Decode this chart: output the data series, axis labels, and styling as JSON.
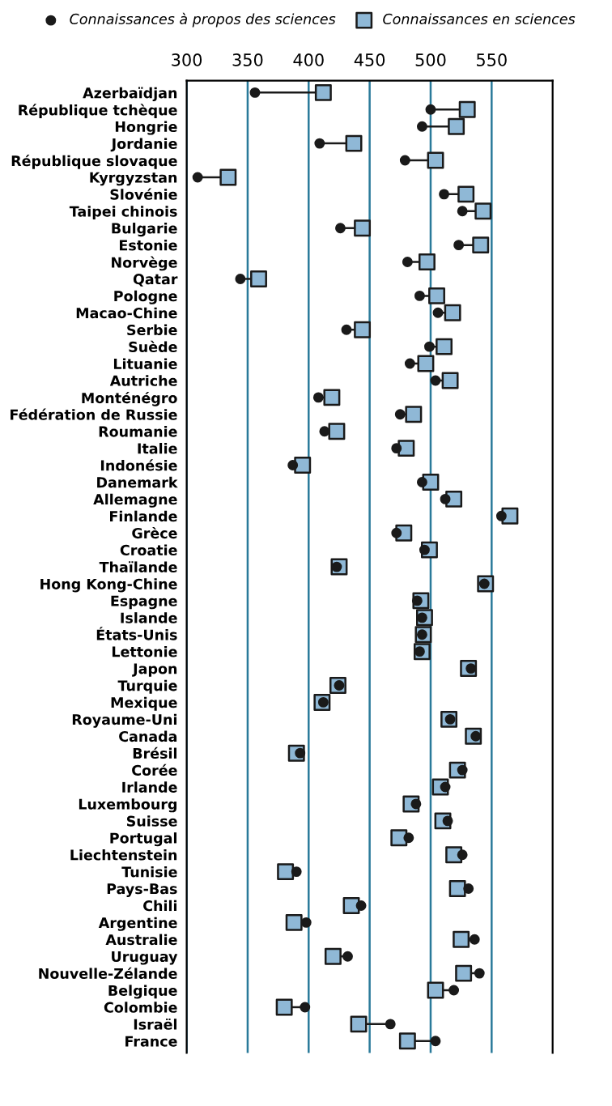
{
  "chart_data": {
    "type": "scatter",
    "orientation": "horizontal",
    "categories": [
      "Azerbaïdjan",
      "République tchèque",
      "Hongrie",
      "Jordanie",
      "République slovaque",
      "Kyrgyzstan",
      "Slovénie",
      "Taipei chinois",
      "Bulgarie",
      "Estonie",
      "Norvège",
      "Qatar",
      "Pologne",
      "Macao-Chine",
      "Serbie",
      "Suède",
      "Lituanie",
      "Autriche",
      "Monténégro",
      "Fédération de Russie",
      "Roumanie",
      "Italie",
      "Indonésie",
      "Danemark",
      "Allemagne",
      "Finlande",
      "Grèce",
      "Croatie",
      "Thaïlande",
      "Hong Kong-Chine",
      "Espagne",
      "Islande",
      "États-Unis",
      "Lettonie",
      "Japon",
      "Turquie",
      "Mexique",
      "Royaume-Uni",
      "Canada",
      "Brésil",
      "Corée",
      "Irlande",
      "Luxembourg",
      "Suisse",
      "Portugal",
      "Liechtenstein",
      "Tunisie",
      "Pays-Bas",
      "Chili",
      "Argentine",
      "Australie",
      "Uruguay",
      "Nouvelle-Zélande",
      "Belgique",
      "Colombie",
      "Israël",
      "France"
    ],
    "series": [
      {
        "name": "Connaissances à propos des sciences",
        "color": "#1a1a1a",
        "marker": "circle",
        "values": [
          356,
          500,
          493,
          409,
          479,
          309,
          511,
          526,
          426,
          523,
          481,
          344,
          491,
          506,
          431,
          499,
          483,
          504,
          408,
          475,
          413,
          472,
          387,
          493,
          512,
          558,
          472,
          495,
          423,
          544,
          489,
          493,
          493,
          491,
          533,
          425,
          412,
          516,
          537,
          393,
          526,
          512,
          488,
          514,
          482,
          526,
          390,
          531,
          443,
          398,
          536,
          432,
          540,
          519,
          397,
          467,
          504
        ]
      },
      {
        "name": "Connaissances en sciences",
        "color": "#8fb8d6",
        "marker": "square",
        "values": [
          412,
          530,
          521,
          437,
          504,
          334,
          529,
          543,
          444,
          541,
          497,
          359,
          505,
          518,
          444,
          511,
          496,
          516,
          419,
          486,
          423,
          480,
          395,
          500,
          519,
          565,
          478,
          499,
          425,
          545,
          492,
          495,
          494,
          493,
          531,
          424,
          411,
          515,
          535,
          390,
          522,
          508,
          484,
          510,
          474,
          519,
          381,
          522,
          435,
          388,
          525,
          420,
          527,
          504,
          380,
          441,
          481
        ]
      }
    ],
    "xlim": [
      300,
      600
    ],
    "xticks": [
      300,
      350,
      400,
      450,
      500,
      550
    ],
    "grid": "x",
    "legend": "top"
  }
}
